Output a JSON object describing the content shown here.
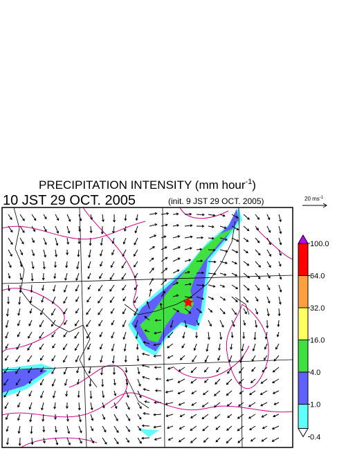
{
  "title": {
    "text": "PRECIPITATION INTENSITY (mm hour",
    "superscript": "-1",
    "closing": ")"
  },
  "valid_time": "10 JST 29 OCT. 2005",
  "init_time": "(init. 9 JST 29 OCT. 2005)",
  "wind_scale": {
    "text": "20 ms",
    "superscript": "-1"
  },
  "colorbar": {
    "levels": [
      {
        "value": 100,
        "label": "100.0"
      },
      {
        "value": 64,
        "label": "64.0"
      },
      {
        "value": 32,
        "label": "32.0"
      },
      {
        "value": 16,
        "label": "16.0"
      },
      {
        "value": 4,
        "label": "4.0"
      },
      {
        "value": 1,
        "label": "1.0"
      },
      {
        "value": 0.4,
        "label": "0.4"
      }
    ],
    "colors": [
      "#ff0000",
      "#ffa040",
      "#ffff60",
      "#40e040",
      "#6060ff",
      "#60ffff"
    ],
    "over_color": "#c000ff",
    "under_color": "#ffffff"
  }
}
